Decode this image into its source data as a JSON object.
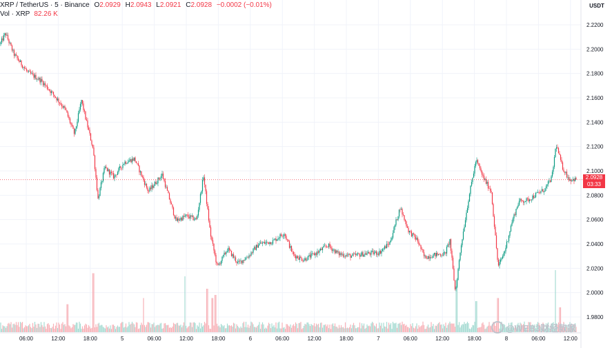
{
  "header": {
    "symbol": "XRP / TetherUS",
    "interval": "5",
    "exchange": "Binance",
    "o_label": "O",
    "o_value": "2.0929",
    "h_label": "H",
    "h_value": "2.0943",
    "l_label": "L",
    "l_value": "2.0921",
    "c_label": "C",
    "c_value": "2.0928",
    "change": "−0.0002 (−0.01%)",
    "volume_label": "Vol · XRP",
    "volume_value": "82.26 K"
  },
  "price_axis": {
    "unit": "USDT",
    "current_price": "2.0928",
    "countdown": "03:33"
  },
  "watermark": "@WEB3财经款家",
  "colors": {
    "up": "#089981",
    "down": "#f23645",
    "up_volume": "#a6dbd3",
    "down_volume": "#f7b1b7",
    "grid": "#f0f3fa",
    "text": "#131722"
  },
  "chart_data": {
    "type": "candlestick",
    "ylim": [
      1.97,
      2.23
    ],
    "y_ticks": [
      "2.2200",
      "2.2000",
      "2.1800",
      "2.1600",
      "2.1400",
      "2.1200",
      "2.1000",
      "2.0800",
      "2.0600",
      "2.0400",
      "2.0200",
      "2.0000",
      "1.9800"
    ],
    "x_ticks": [
      "06:00",
      "12:00",
      "18:00",
      "5",
      "06:00",
      "12:00",
      "18:00",
      "6",
      "06:00",
      "12:00",
      "18:00",
      "7",
      "06:00",
      "12:00",
      "18:00",
      "8",
      "06:00",
      "12:00"
    ],
    "price_path": [
      [
        0,
        2.204
      ],
      [
        8,
        2.213
      ],
      [
        20,
        2.196
      ],
      [
        40,
        2.181
      ],
      [
        60,
        2.174
      ],
      [
        80,
        2.161
      ],
      [
        95,
        2.15
      ],
      [
        108,
        2.13
      ],
      [
        118,
        2.158
      ],
      [
        125,
        2.141
      ],
      [
        135,
        2.118
      ],
      [
        142,
        2.077
      ],
      [
        152,
        2.103
      ],
      [
        165,
        2.095
      ],
      [
        180,
        2.107
      ],
      [
        195,
        2.11
      ],
      [
        215,
        2.083
      ],
      [
        235,
        2.097
      ],
      [
        255,
        2.059
      ],
      [
        270,
        2.063
      ],
      [
        285,
        2.06
      ],
      [
        295,
        2.096
      ],
      [
        305,
        2.048
      ],
      [
        315,
        2.021
      ],
      [
        330,
        2.036
      ],
      [
        345,
        2.024
      ],
      [
        360,
        2.03
      ],
      [
        375,
        2.04
      ],
      [
        395,
        2.042
      ],
      [
        412,
        2.049
      ],
      [
        425,
        2.031
      ],
      [
        440,
        2.027
      ],
      [
        460,
        2.033
      ],
      [
        475,
        2.039
      ],
      [
        490,
        2.032
      ],
      [
        510,
        2.03
      ],
      [
        530,
        2.032
      ],
      [
        550,
        2.033
      ],
      [
        565,
        2.041
      ],
      [
        580,
        2.07
      ],
      [
        592,
        2.051
      ],
      [
        605,
        2.043
      ],
      [
        615,
        2.029
      ],
      [
        630,
        2.031
      ],
      [
        645,
        2.032
      ],
      [
        652,
        2.043
      ],
      [
        660,
        2.0
      ],
      [
        668,
        2.038
      ],
      [
        680,
        2.08
      ],
      [
        690,
        2.109
      ],
      [
        700,
        2.095
      ],
      [
        712,
        2.083
      ],
      [
        722,
        2.021
      ],
      [
        732,
        2.035
      ],
      [
        742,
        2.058
      ],
      [
        752,
        2.075
      ],
      [
        765,
        2.076
      ],
      [
        778,
        2.081
      ],
      [
        790,
        2.085
      ],
      [
        800,
        2.095
      ],
      [
        806,
        2.122
      ],
      [
        815,
        2.103
      ],
      [
        825,
        2.093
      ],
      [
        836,
        2.093
      ]
    ],
    "volume_spikes": [
      [
        98,
        0.45
      ],
      [
        135,
        0.95
      ],
      [
        208,
        0.55
      ],
      [
        268,
        0.9
      ],
      [
        300,
        0.7
      ],
      [
        308,
        0.55
      ],
      [
        312,
        0.6
      ],
      [
        662,
        0.85
      ],
      [
        690,
        0.5
      ],
      [
        722,
        0.55
      ],
      [
        805,
        1.0
      ],
      [
        812,
        0.4
      ]
    ]
  }
}
